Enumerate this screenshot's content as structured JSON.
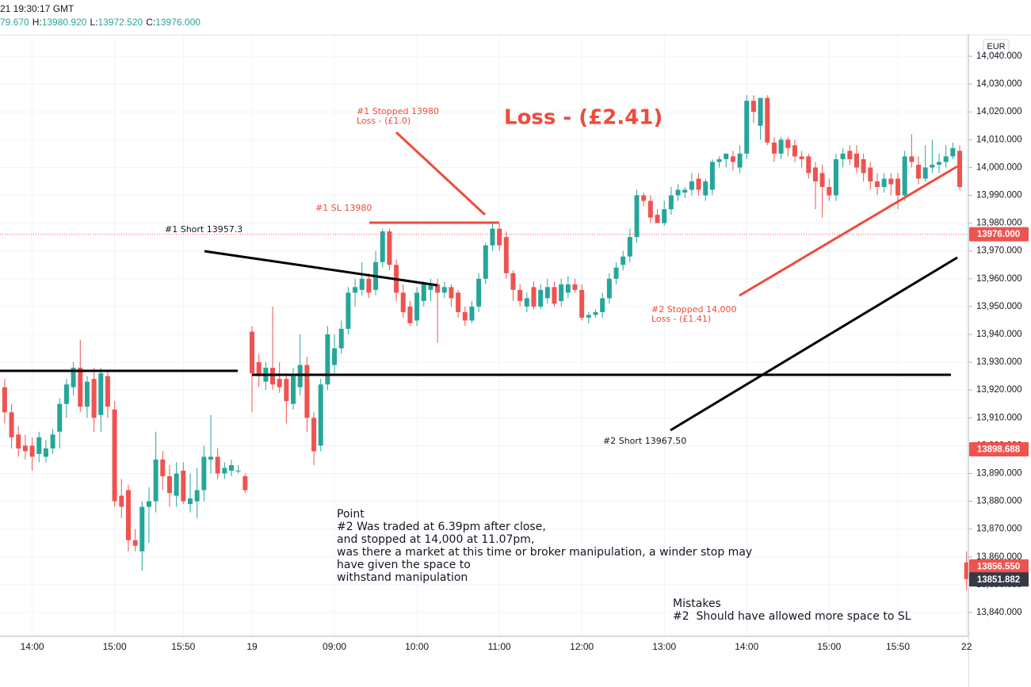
{
  "chart_data": {
    "type": "candlestick",
    "header_time": "21 19:30:17 GMT",
    "header_open": "79.670",
    "header_fields": [
      {
        "label": "H:",
        "value": "13980.920"
      },
      {
        "label": "L:",
        "value": "13972.520"
      },
      {
        "label": "C:",
        "value": "13976.000"
      }
    ],
    "currency": "EUR",
    "up_color": "#26a69a",
    "down_color": "#ef5350",
    "grid": true,
    "ylim": [
      13831.45,
      14047.41
    ],
    "yticks": [
      {
        "value": 14040,
        "label": "14,040.000"
      },
      {
        "value": 14030,
        "label": "14,030.000"
      },
      {
        "value": 14020,
        "label": "14,020.000"
      },
      {
        "value": 14010,
        "label": "14,010.000"
      },
      {
        "value": 14000,
        "label": "14,000.000"
      },
      {
        "value": 13990,
        "label": "13,990.000"
      },
      {
        "value": 13980,
        "label": "13,980.000"
      },
      {
        "value": 13970,
        "label": "13,970.000"
      },
      {
        "value": 13960,
        "label": "13,960.000"
      },
      {
        "value": 13950,
        "label": "13,950.000"
      },
      {
        "value": 13940,
        "label": "13,940.000"
      },
      {
        "value": 13930,
        "label": "13,930.000"
      },
      {
        "value": 13920,
        "label": "13,920.000"
      },
      {
        "value": 13910,
        "label": "13,910.000"
      },
      {
        "value": 13900,
        "label": "13,900.000"
      },
      {
        "value": 13890,
        "label": "13,890.000"
      },
      {
        "value": 13880,
        "label": "13,880.000"
      },
      {
        "value": 13870,
        "label": "13,870.000"
      },
      {
        "value": 13860,
        "label": "13,860.000"
      },
      {
        "value": 13850,
        "label": "13,850.000"
      },
      {
        "value": 13840,
        "label": "13,840.000"
      }
    ],
    "price_tags": [
      {
        "value": 13976,
        "label": "13976.000",
        "color": "#ef5350",
        "dotted_line": true
      },
      {
        "value": 13898.688,
        "label": "13898.688",
        "color": "#ef5350",
        "dotted_line": false
      },
      {
        "value": 13856.55,
        "label": "13856.550",
        "color": "#ef5350",
        "dotted_line": false
      },
      {
        "value": 13851.882,
        "label": "13851.882",
        "color": "#363a45",
        "dotted_line": false
      }
    ],
    "categories": [
      null,
      null,
      null,
      null,
      "14:00",
      null,
      null,
      null,
      null,
      null,
      null,
      null,
      null,
      null,
      null,
      null,
      "15:00",
      null,
      null,
      null,
      null,
      null,
      null,
      null,
      null,
      null,
      "15:50",
      null,
      null,
      null,
      null,
      null,
      null,
      null,
      null,
      null,
      "19",
      null,
      null,
      null,
      null,
      null,
      null,
      null,
      null,
      null,
      null,
      null,
      "09:00",
      null,
      null,
      null,
      null,
      null,
      null,
      null,
      null,
      null,
      null,
      null,
      "10:00",
      null,
      null,
      null,
      null,
      null,
      null,
      null,
      null,
      null,
      null,
      null,
      "11:00",
      null,
      null,
      null,
      null,
      null,
      null,
      null,
      null,
      null,
      null,
      null,
      "12:00",
      null,
      null,
      null,
      null,
      null,
      null,
      null,
      null,
      null,
      null,
      null,
      "13:00",
      null,
      null,
      null,
      null,
      null,
      null,
      null,
      null,
      null,
      null,
      null,
      "14:00",
      null,
      null,
      null,
      null,
      null,
      null,
      null,
      null,
      null,
      null,
      null,
      "15:00",
      null,
      null,
      null,
      null,
      null,
      null,
      null,
      null,
      null,
      "15:50",
      null,
      null,
      null,
      null,
      null,
      null,
      null,
      null,
      null,
      "22"
    ],
    "candles": [
      [
        13921,
        13924,
        13908,
        13912
      ],
      [
        13912,
        13915,
        13899,
        13903
      ],
      [
        13904,
        13907,
        13896,
        13899
      ],
      [
        13900,
        13904,
        13895,
        13898
      ],
      [
        13900,
        13903,
        13891,
        13896
      ],
      [
        13897,
        13905,
        13894,
        13903
      ],
      [
        13896,
        13902,
        13894,
        13899
      ],
      [
        13899,
        13906,
        13897,
        13904
      ],
      [
        13905,
        13917,
        13899,
        13915
      ],
      [
        13915,
        13924,
        13910,
        13922
      ],
      [
        13921,
        13930,
        13918,
        13928
      ],
      [
        13928,
        13938,
        13912,
        13914
      ],
      [
        13914,
        13925,
        13910,
        13923
      ],
      [
        13924,
        13928,
        13905,
        13910
      ],
      [
        13911,
        13928,
        13905,
        13926
      ],
      [
        13925,
        13927,
        13910,
        13914
      ],
      [
        13913,
        13916,
        13878,
        13880
      ],
      [
        13882,
        13888,
        13874,
        13878
      ],
      [
        13884,
        13886,
        13862,
        13866
      ],
      [
        13866,
        13870,
        13862,
        13864
      ],
      [
        13862,
        13880,
        13855,
        13878
      ],
      [
        13878,
        13885,
        13865,
        13880
      ],
      [
        13880,
        13905,
        13876,
        13895
      ],
      [
        13895,
        13898,
        13884,
        13889
      ],
      [
        13889,
        13893,
        13878,
        13883
      ],
      [
        13882,
        13894,
        13878,
        13890
      ],
      [
        13891,
        13894,
        13879,
        13880
      ],
      [
        13879,
        13890,
        13876,
        13881
      ],
      [
        13880,
        13892,
        13874,
        13884
      ],
      [
        13884,
        13900,
        13880,
        13896
      ],
      [
        13895,
        13911,
        13890,
        13896
      ],
      [
        13896,
        13899,
        13888,
        13890
      ],
      [
        13890,
        13894,
        13888,
        13892
      ],
      [
        13891,
        13895,
        13889,
        13893
      ],
      [
        13891,
        13893,
        13890,
        13891
      ],
      [
        13889,
        13890,
        13883,
        13884
      ],
      [
        13941,
        13943,
        13912,
        13926
      ],
      [
        13930,
        13933,
        13921,
        13925
      ],
      [
        13923,
        13930,
        13920,
        13928
      ],
      [
        13928,
        13950,
        13920,
        13922
      ],
      [
        13924,
        13930,
        13919,
        13921
      ],
      [
        13924,
        13926,
        13908,
        13916
      ],
      [
        13915,
        13928,
        13913,
        13925
      ],
      [
        13921,
        13940,
        13918,
        13929
      ],
      [
        13929,
        13932,
        13905,
        13910
      ],
      [
        13910,
        13912,
        13893,
        13898
      ],
      [
        13900,
        13924,
        13898,
        13922
      ],
      [
        13922,
        13943,
        13920,
        13940
      ],
      [
        13929,
        13940,
        13926,
        13935
      ],
      [
        13935,
        13945,
        13933,
        13942
      ],
      [
        13942,
        13957,
        13940,
        13955
      ],
      [
        13955,
        13960,
        13950,
        13957
      ],
      [
        13956,
        13966,
        13954,
        13960
      ],
      [
        13960,
        13962,
        13953,
        13955
      ],
      [
        13956,
        13970,
        13954,
        13966
      ],
      [
        13966,
        13978,
        13964,
        13977
      ],
      [
        13977,
        13978,
        13963,
        13965
      ],
      [
        13965,
        13967,
        13952,
        13955
      ],
      [
        13955,
        13958,
        13946,
        13948
      ],
      [
        13950,
        13952,
        13943,
        13944
      ],
      [
        13945,
        13957,
        13943,
        13955
      ],
      [
        13952,
        13959,
        13950,
        13958
      ],
      [
        13956,
        13960,
        13952,
        13958
      ],
      [
        13958,
        13960,
        13937,
        13955
      ],
      [
        13955,
        13959,
        13953,
        13957
      ],
      [
        13957,
        13958,
        13950,
        13953
      ],
      [
        13955,
        13956,
        13946,
        13948
      ],
      [
        13948,
        13950,
        13943,
        13945
      ],
      [
        13945,
        13952,
        13944,
        13950
      ],
      [
        13950,
        13962,
        13948,
        13960
      ],
      [
        13960,
        13973,
        13958,
        13972
      ],
      [
        13972,
        13980,
        13970,
        13978
      ],
      [
        13978,
        13980,
        13970,
        13972
      ],
      [
        13975,
        13977,
        13960,
        13962
      ],
      [
        13962,
        13963,
        13952,
        13956
      ],
      [
        13956,
        13958,
        13950,
        13952
      ],
      [
        13950,
        13955,
        13948,
        13953
      ],
      [
        13957,
        13959,
        13949,
        13950
      ],
      [
        13950,
        13958,
        13949,
        13956
      ],
      [
        13953,
        13960,
        13951,
        13957
      ],
      [
        13957,
        13959,
        13950,
        13951
      ],
      [
        13952,
        13960,
        13950,
        13958
      ],
      [
        13955,
        13961,
        13953,
        13958
      ],
      [
        13958,
        13960,
        13955,
        13956
      ],
      [
        13956,
        13958,
        13945,
        13946
      ],
      [
        13946,
        13948,
        13944,
        13947
      ],
      [
        13947,
        13949,
        13946,
        13948
      ],
      [
        13948,
        13955,
        13946,
        13953
      ],
      [
        13953,
        13962,
        13951,
        13960
      ],
      [
        13960,
        13966,
        13958,
        13964
      ],
      [
        13965,
        13970,
        13963,
        13968
      ],
      [
        13968,
        13978,
        13966,
        13975
      ],
      [
        13975,
        13992,
        13973,
        13990
      ],
      [
        13990,
        13991,
        13986,
        13988
      ],
      [
        13988,
        13990,
        13980,
        13982
      ],
      [
        13983,
        13985,
        13980,
        13980
      ],
      [
        13980,
        13988,
        13979,
        13985
      ],
      [
        13985,
        13993,
        13983,
        13990
      ],
      [
        13990,
        13994,
        13988,
        13992
      ],
      [
        13991,
        13993,
        13989,
        13992
      ],
      [
        13992,
        13998,
        13990,
        13995
      ],
      [
        13996,
        13998,
        13990,
        13992
      ],
      [
        13990,
        13996,
        13988,
        13995
      ],
      [
        13992,
        14003,
        13990,
        14002
      ],
      [
        14002,
        14004,
        14000,
        14003
      ],
      [
        14003,
        14005,
        14000,
        14005
      ],
      [
        14004,
        14006,
        13999,
        14002
      ],
      [
        14000,
        14008,
        13998,
        14005
      ],
      [
        14005,
        14026,
        14003,
        14024
      ],
      [
        14024,
        14026,
        14016,
        14020
      ],
      [
        14015,
        14025,
        14010,
        14025
      ],
      [
        14025,
        14026,
        14008,
        14009
      ],
      [
        14009,
        14011,
        14002,
        14005
      ],
      [
        14005,
        14011,
        14003,
        14010
      ],
      [
        14010,
        14011,
        14004,
        14007
      ],
      [
        14008,
        14010,
        14002,
        14004
      ],
      [
        14004,
        14006,
        14000,
        14003
      ],
      [
        14004,
        14005,
        13996,
        13998
      ],
      [
        14000,
        14002,
        13985,
        13995
      ],
      [
        13998,
        14001,
        13982,
        13993
      ],
      [
        13993,
        13996,
        13988,
        13990
      ],
      [
        13990,
        14005,
        13988,
        14003
      ],
      [
        14003,
        14007,
        14000,
        14005
      ],
      [
        14006,
        14008,
        14001,
        14003
      ],
      [
        14005,
        14008,
        13998,
        14000
      ],
      [
        14003,
        14005,
        13995,
        13998
      ],
      [
        14000,
        14002,
        13992,
        13995
      ],
      [
        13995,
        13998,
        13990,
        13993
      ],
      [
        13993,
        13998,
        13991,
        13996
      ],
      [
        13996,
        13998,
        13990,
        13994
      ],
      [
        13996,
        13998,
        13985,
        13990
      ],
      [
        13990,
        14006,
        13988,
        14004
      ],
      [
        14004,
        14012,
        14000,
        14002
      ],
      [
        14001,
        14004,
        13994,
        13996
      ],
      [
        13996,
        14008,
        13995,
        14000
      ],
      [
        14000,
        14010,
        13998,
        14001
      ],
      [
        14001,
        14005,
        13998,
        14002
      ],
      [
        14002,
        14008,
        14000,
        14004
      ],
      [
        14004,
        14009,
        14003,
        14007
      ],
      [
        14006,
        14008,
        13992,
        13993
      ],
      [
        13858,
        13862,
        13848,
        13852
      ]
    ],
    "annotations": {
      "stop1": [
        "#1 Stopped 13980",
        "Loss - (£1.0)"
      ],
      "total_loss": "Loss - (£2.41)",
      "sl1": "#1 SL 13980",
      "short1": "#1 Short 13957.3",
      "stop2": [
        "#2 Stopped 14,000",
        "Loss - (£1.41)"
      ],
      "short2": "#2 Short 13967.50",
      "point": [
        "Point",
        "#2 Was traded at 6.39pm after close,",
        "and stopped at 14,000 at 11.07pm,",
        "was there a market at this time or broker manipulation, a winder stop may",
        "have given the space to",
        "withstand manipulation"
      ],
      "mistakes": [
        "Mistakes",
        "#2  Should have allowed more space to SL"
      ]
    }
  }
}
